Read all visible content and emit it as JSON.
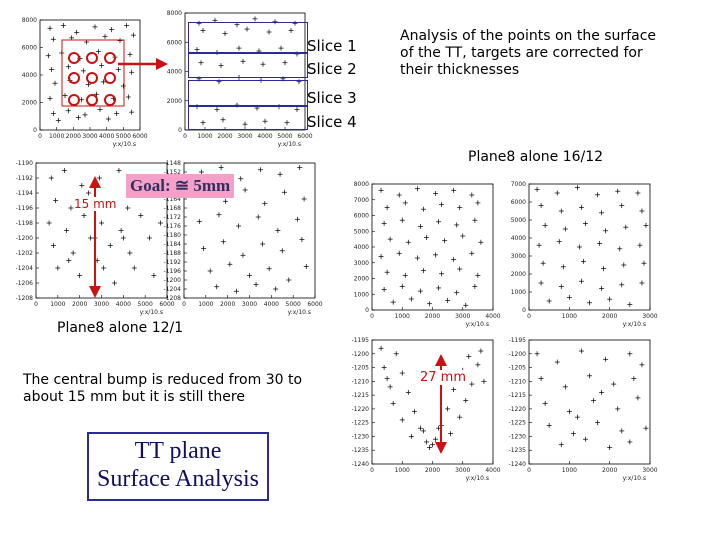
{
  "slices": [
    "Slice 1",
    "Slice 2",
    "Slice 3",
    "Slice 4"
  ],
  "analysis_text": [
    "Analysis of the points on the surface",
    "of the TT, targets are corrected for",
    "their thicknesses"
  ],
  "plane8_16_12": "Plane8 alone 16/12",
  "plane8_12_1": "Plane8 alone 12/1",
  "goal_text": "Goal: ≅ 5mm",
  "mm15": "15 mm",
  "mm27": "27 mm",
  "central_bump": [
    "The central bump is reduced from 30 to",
    "about 15 mm but it is still there"
  ],
  "box_title": [
    "TT plane",
    "Surface Analysis"
  ],
  "axis_label": "y:x/10.s",
  "colors": {
    "red": "#cc1111",
    "blue": "#2a2a9a",
    "pink": "#f4a0c8"
  },
  "chart_data": [
    {
      "type": "scatter",
      "id": "surface-map-slices",
      "xlim": [
        0,
        6000
      ],
      "ylim": [
        0,
        8000
      ],
      "x_ticks": [
        0,
        1000,
        2000,
        3000,
        4000,
        5000,
        6000
      ],
      "y_ticks": [
        0,
        2000,
        4000,
        6000,
        8000
      ],
      "points": [
        [
          600,
          7400
        ],
        [
          1400,
          7600
        ],
        [
          2200,
          7100
        ],
        [
          3300,
          7500
        ],
        [
          4300,
          7300
        ],
        [
          5200,
          7600
        ],
        [
          800,
          6600
        ],
        [
          1900,
          6700
        ],
        [
          2800,
          6400
        ],
        [
          3900,
          6800
        ],
        [
          4800,
          6500
        ],
        [
          5600,
          6900
        ],
        [
          500,
          5400
        ],
        [
          1300,
          5600
        ],
        [
          2400,
          5200
        ],
        [
          3500,
          5700
        ],
        [
          4500,
          5300
        ],
        [
          5400,
          5500
        ],
        [
          700,
          4400
        ],
        [
          1700,
          4600
        ],
        [
          2600,
          4300
        ],
        [
          3700,
          4700
        ],
        [
          4700,
          4400
        ],
        [
          5500,
          4200
        ],
        [
          900,
          3400
        ],
        [
          1800,
          3600
        ],
        [
          2900,
          3300
        ],
        [
          3800,
          3500
        ],
        [
          5000,
          3200
        ],
        [
          600,
          2300
        ],
        [
          1500,
          2500
        ],
        [
          2500,
          2200
        ],
        [
          3400,
          2600
        ],
        [
          4400,
          2300
        ],
        [
          5300,
          2400
        ],
        [
          800,
          1200
        ],
        [
          1700,
          1400
        ],
        [
          2700,
          1100
        ],
        [
          3600,
          1500
        ],
        [
          4600,
          1200
        ],
        [
          5500,
          1300
        ],
        [
          1100,
          700
        ],
        [
          2300,
          900
        ],
        [
          4100,
          800
        ]
      ]
    },
    {
      "type": "scatter",
      "id": "slices-stack",
      "xlim": [
        0,
        6000
      ],
      "ylim": [
        0,
        8000
      ],
      "x_ticks": [
        0,
        1000,
        2000,
        3000,
        4000,
        5000,
        6000
      ],
      "y_ticks": [
        0,
        2000,
        4000,
        6000,
        8000
      ],
      "points": [
        [
          700,
          7300
        ],
        [
          1500,
          7500
        ],
        [
          2600,
          7200
        ],
        [
          3500,
          7600
        ],
        [
          4500,
          7400
        ],
        [
          5500,
          7300
        ],
        [
          900,
          6800
        ],
        [
          2000,
          6600
        ],
        [
          3100,
          6900
        ],
        [
          4200,
          6700
        ],
        [
          5300,
          6800
        ],
        [
          600,
          5500
        ],
        [
          1600,
          5300
        ],
        [
          2700,
          5600
        ],
        [
          3700,
          5400
        ],
        [
          4800,
          5600
        ],
        [
          5600,
          5200
        ],
        [
          800,
          4600
        ],
        [
          1800,
          4400
        ],
        [
          2900,
          4700
        ],
        [
          3900,
          4500
        ],
        [
          5000,
          4600
        ],
        [
          700,
          3500
        ],
        [
          1700,
          3300
        ],
        [
          2700,
          3600
        ],
        [
          3800,
          3400
        ],
        [
          4900,
          3500
        ],
        [
          5700,
          3300
        ],
        [
          600,
          1600
        ],
        [
          1600,
          1400
        ],
        [
          2600,
          1700
        ],
        [
          3600,
          1500
        ],
        [
          4700,
          1600
        ],
        [
          5600,
          1400
        ],
        [
          900,
          500
        ],
        [
          1900,
          700
        ],
        [
          3000,
          400
        ],
        [
          4000,
          600
        ],
        [
          5100,
          500
        ]
      ]
    },
    {
      "type": "scatter",
      "id": "plane8-12-1-left",
      "xlim": [
        0,
        6000
      ],
      "ylim": [
        -1208,
        -1190
      ],
      "x_ticks": [
        0,
        1000,
        2000,
        3000,
        4000,
        5000,
        6000
      ],
      "y_ticks": [
        -1190,
        -1192,
        -1194,
        -1196,
        -1198,
        -1200,
        -1202,
        -1204,
        -1206,
        -1208
      ],
      "points": [
        [
          700,
          -1192
        ],
        [
          1300,
          -1191
        ],
        [
          2100,
          -1193
        ],
        [
          2900,
          -1192
        ],
        [
          3800,
          -1191
        ],
        [
          4700,
          -1193
        ],
        [
          5600,
          -1192
        ],
        [
          900,
          -1195
        ],
        [
          1600,
          -1196
        ],
        [
          2400,
          -1194
        ],
        [
          3300,
          -1195
        ],
        [
          4200,
          -1196
        ],
        [
          5100,
          -1194
        ],
        [
          600,
          -1198
        ],
        [
          1400,
          -1199
        ],
        [
          2200,
          -1197
        ],
        [
          3000,
          -1198
        ],
        [
          3900,
          -1199
        ],
        [
          4800,
          -1197
        ],
        [
          5700,
          -1198
        ],
        [
          800,
          -1201
        ],
        [
          1700,
          -1202
        ],
        [
          2500,
          -1200
        ],
        [
          3400,
          -1201
        ],
        [
          4300,
          -1202
        ],
        [
          5200,
          -1200
        ],
        [
          1000,
          -1204
        ],
        [
          2000,
          -1205
        ],
        [
          2800,
          -1203
        ],
        [
          3600,
          -1206
        ],
        [
          4500,
          -1204
        ],
        [
          5400,
          -1205
        ],
        [
          1500,
          -1203
        ],
        [
          2700,
          -1200
        ],
        [
          3100,
          -1204
        ],
        [
          4000,
          -1200
        ]
      ]
    },
    {
      "type": "scatter",
      "id": "plane8-12-1-right",
      "xlim": [
        0,
        6000
      ],
      "ylim": [
        -1208,
        -1148
      ],
      "x_ticks": [
        0,
        1000,
        2000,
        3000,
        4000,
        5000,
        6000
      ],
      "y_ticks": [
        -1148,
        -1152,
        -1156,
        -1160,
        -1164,
        -1168,
        -1172,
        -1176,
        -1180,
        -1184,
        -1188,
        -1192,
        -1196,
        -1200,
        -1204,
        -1208
      ],
      "points": [
        [
          800,
          -1152
        ],
        [
          1700,
          -1150
        ],
        [
          2600,
          -1155
        ],
        [
          3500,
          -1151
        ],
        [
          4400,
          -1153
        ],
        [
          5300,
          -1150
        ],
        [
          1000,
          -1162
        ],
        [
          1900,
          -1165
        ],
        [
          2800,
          -1160
        ],
        [
          3700,
          -1166
        ],
        [
          4600,
          -1161
        ],
        [
          5500,
          -1164
        ],
        [
          700,
          -1174
        ],
        [
          1600,
          -1171
        ],
        [
          2500,
          -1176
        ],
        [
          3400,
          -1172
        ],
        [
          4300,
          -1178
        ],
        [
          5200,
          -1173
        ],
        [
          900,
          -1186
        ],
        [
          1800,
          -1183
        ],
        [
          2700,
          -1189
        ],
        [
          3600,
          -1184
        ],
        [
          4500,
          -1187
        ],
        [
          5400,
          -1182
        ],
        [
          1200,
          -1196
        ],
        [
          2100,
          -1193
        ],
        [
          3000,
          -1198
        ],
        [
          3900,
          -1195
        ],
        [
          4800,
          -1200
        ],
        [
          5600,
          -1194
        ],
        [
          1500,
          -1203
        ],
        [
          2400,
          -1205
        ],
        [
          3300,
          -1202
        ],
        [
          4200,
          -1204
        ]
      ]
    },
    {
      "type": "scatter",
      "id": "plane8-16-12-top-left",
      "xlim": [
        0,
        4000
      ],
      "ylim": [
        0,
        8000
      ],
      "x_ticks": [
        0,
        1000,
        2000,
        3000,
        4000
      ],
      "y_ticks": [
        0,
        1000,
        2000,
        3000,
        4000,
        5000,
        6000,
        7000,
        8000
      ],
      "points": [
        [
          300,
          7600
        ],
        [
          900,
          7300
        ],
        [
          1500,
          7700
        ],
        [
          2100,
          7400
        ],
        [
          2700,
          7600
        ],
        [
          3300,
          7300
        ],
        [
          500,
          6500
        ],
        [
          1100,
          6800
        ],
        [
          1700,
          6400
        ],
        [
          2300,
          6700
        ],
        [
          2900,
          6500
        ],
        [
          3500,
          6800
        ],
        [
          400,
          5500
        ],
        [
          1000,
          5700
        ],
        [
          1600,
          5300
        ],
        [
          2200,
          5600
        ],
        [
          2800,
          5400
        ],
        [
          3400,
          5700
        ],
        [
          600,
          4500
        ],
        [
          1200,
          4300
        ],
        [
          1800,
          4600
        ],
        [
          2400,
          4400
        ],
        [
          3000,
          4700
        ],
        [
          3600,
          4300
        ],
        [
          300,
          3400
        ],
        [
          900,
          3600
        ],
        [
          1500,
          3300
        ],
        [
          2100,
          3500
        ],
        [
          2700,
          3200
        ],
        [
          3300,
          3600
        ],
        [
          500,
          2400
        ],
        [
          1100,
          2200
        ],
        [
          1700,
          2500
        ],
        [
          2300,
          2300
        ],
        [
          2900,
          2600
        ],
        [
          3500,
          2200
        ],
        [
          400,
          1300
        ],
        [
          1000,
          1500
        ],
        [
          1600,
          1200
        ],
        [
          2200,
          1400
        ],
        [
          2800,
          1100
        ],
        [
          3400,
          1500
        ],
        [
          700,
          500
        ],
        [
          1300,
          700
        ],
        [
          1900,
          400
        ],
        [
          2500,
          600
        ],
        [
          3100,
          300
        ]
      ]
    },
    {
      "type": "scatter",
      "id": "plane8-16-12-top-right",
      "xlim": [
        0,
        3000
      ],
      "ylim": [
        0,
        7000
      ],
      "x_ticks": [
        0,
        1000,
        2000,
        3000
      ],
      "y_ticks": [
        0,
        1000,
        2000,
        3000,
        4000,
        5000,
        6000,
        7000
      ],
      "points": [
        [
          200,
          6700
        ],
        [
          700,
          6500
        ],
        [
          1200,
          6800
        ],
        [
          1700,
          6400
        ],
        [
          2200,
          6600
        ],
        [
          2700,
          6500
        ],
        [
          300,
          5800
        ],
        [
          800,
          5500
        ],
        [
          1300,
          5700
        ],
        [
          1800,
          5400
        ],
        [
          2300,
          5800
        ],
        [
          2800,
          5500
        ],
        [
          400,
          4700
        ],
        [
          900,
          4500
        ],
        [
          1400,
          4800
        ],
        [
          1900,
          4400
        ],
        [
          2400,
          4600
        ],
        [
          2900,
          4700
        ],
        [
          250,
          3600
        ],
        [
          750,
          3800
        ],
        [
          1250,
          3500
        ],
        [
          1750,
          3700
        ],
        [
          2250,
          3400
        ],
        [
          2750,
          3600
        ],
        [
          350,
          2600
        ],
        [
          850,
          2400
        ],
        [
          1350,
          2700
        ],
        [
          1850,
          2300
        ],
        [
          2350,
          2500
        ],
        [
          2850,
          2600
        ],
        [
          300,
          1500
        ],
        [
          800,
          1300
        ],
        [
          1300,
          1600
        ],
        [
          1800,
          1200
        ],
        [
          2300,
          1400
        ],
        [
          2800,
          1500
        ],
        [
          500,
          500
        ],
        [
          1000,
          700
        ],
        [
          1500,
          400
        ],
        [
          2000,
          600
        ],
        [
          2500,
          300
        ]
      ]
    },
    {
      "type": "scatter",
      "id": "plane8-16-12-bottom-left",
      "xlim": [
        0,
        4000
      ],
      "ylim": [
        -1240,
        -1195
      ],
      "x_ticks": [
        0,
        1000,
        2000,
        3000,
        4000
      ],
      "y_ticks": [
        -1195,
        -1200,
        -1205,
        -1210,
        -1215,
        -1220,
        -1225,
        -1230,
        -1235,
        -1240
      ],
      "points": [
        [
          300,
          -1198
        ],
        [
          800,
          -1200
        ],
        [
          3600,
          -1199
        ],
        [
          3200,
          -1201
        ],
        [
          400,
          -1205
        ],
        [
          1000,
          -1207
        ],
        [
          3000,
          -1206
        ],
        [
          3500,
          -1204
        ],
        [
          600,
          -1212
        ],
        [
          1200,
          -1214
        ],
        [
          2700,
          -1213
        ],
        [
          3300,
          -1211
        ],
        [
          700,
          -1218
        ],
        [
          1400,
          -1221
        ],
        [
          2500,
          -1220
        ],
        [
          3100,
          -1217
        ],
        [
          1000,
          -1224
        ],
        [
          1600,
          -1227
        ],
        [
          2300,
          -1226
        ],
        [
          2900,
          -1223
        ],
        [
          1300,
          -1230
        ],
        [
          1800,
          -1232
        ],
        [
          2100,
          -1231
        ],
        [
          2600,
          -1229
        ],
        [
          1900,
          -1234
        ],
        [
          2000,
          -1233
        ],
        [
          1700,
          -1228
        ],
        [
          2200,
          -1227
        ],
        [
          500,
          -1209
        ],
        [
          3700,
          -1210
        ]
      ]
    },
    {
      "type": "scatter",
      "id": "plane8-16-12-bottom-right",
      "xlim": [
        0,
        3000
      ],
      "ylim": [
        -1240,
        -1195
      ],
      "x_ticks": [
        0,
        1000,
        2000,
        3000
      ],
      "y_ticks": [
        -1195,
        -1200,
        -1205,
        -1210,
        -1215,
        -1220,
        -1225,
        -1230,
        -1235,
        -1240
      ],
      "points": [
        [
          200,
          -1200
        ],
        [
          700,
          -1203
        ],
        [
          1300,
          -1199
        ],
        [
          1900,
          -1202
        ],
        [
          2500,
          -1200
        ],
        [
          2800,
          -1204
        ],
        [
          300,
          -1209
        ],
        [
          900,
          -1212
        ],
        [
          1500,
          -1208
        ],
        [
          2100,
          -1211
        ],
        [
          2600,
          -1209
        ],
        [
          400,
          -1218
        ],
        [
          1000,
          -1221
        ],
        [
          1600,
          -1217
        ],
        [
          2200,
          -1220
        ],
        [
          2700,
          -1216
        ],
        [
          500,
          -1226
        ],
        [
          1100,
          -1229
        ],
        [
          1700,
          -1225
        ],
        [
          2300,
          -1228
        ],
        [
          2900,
          -1227
        ],
        [
          800,
          -1233
        ],
        [
          1400,
          -1231
        ],
        [
          2000,
          -1234
        ],
        [
          2500,
          -1232
        ],
        [
          1200,
          -1223
        ],
        [
          1800,
          -1214
        ]
      ]
    }
  ]
}
